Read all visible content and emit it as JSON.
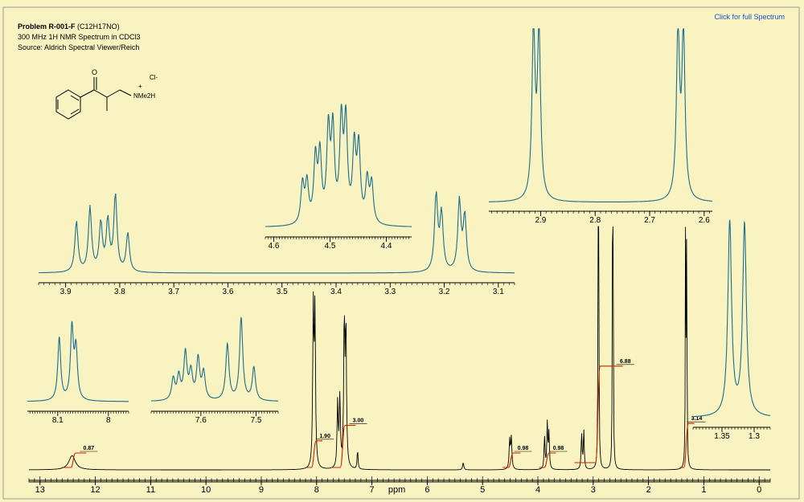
{
  "link_label": "Click for full Spectrum",
  "header": {
    "problem_prefix": "Problem R-001-F",
    "formula": "(C12H17NO)",
    "line2": "300 MHz 1H NMR Spectrum in CDCl3",
    "line3": "Source: Aldrich Spectral Viewer/Reich"
  },
  "structure_labels": {
    "o": "O",
    "cl": "Cl-",
    "plus": "+",
    "nme2h": "NMe2H"
  },
  "colors": {
    "background": "#f8f3c0",
    "main_spectrum": "#000000",
    "inset_spectrum": "#1a6f8f",
    "integral": "#cc2200",
    "axis": "#000000",
    "link": "#1a4fd0"
  },
  "chart_data": [
    {
      "type": "line",
      "name": "main",
      "title": "",
      "xlabel": "ppm",
      "xlim": [
        13.2,
        -0.2
      ],
      "x_reversed": true,
      "ticks": [
        13,
        12,
        11,
        10,
        9,
        8,
        7,
        6,
        5,
        4,
        3,
        2,
        1,
        0
      ],
      "peaks": [
        {
          "ppm": 12.42,
          "height": 0.06,
          "width": 0.07
        },
        {
          "ppm": 8.06,
          "height": 0.66,
          "width": 0.012
        },
        {
          "ppm": 8.03,
          "height": 0.64,
          "width": 0.012
        },
        {
          "ppm": 7.62,
          "height": 0.27,
          "width": 0.012
        },
        {
          "ppm": 7.58,
          "height": 0.29,
          "width": 0.012
        },
        {
          "ppm": 7.5,
          "height": 0.61,
          "width": 0.012
        },
        {
          "ppm": 7.47,
          "height": 0.58,
          "width": 0.012
        },
        {
          "ppm": 7.26,
          "height": 0.08,
          "width": 0.01
        },
        {
          "ppm": 5.35,
          "height": 0.03,
          "width": 0.012
        },
        {
          "ppm": 4.51,
          "height": 0.12,
          "width": 0.012
        },
        {
          "ppm": 4.48,
          "height": 0.13,
          "width": 0.012
        },
        {
          "ppm": 3.88,
          "height": 0.14,
          "width": 0.01
        },
        {
          "ppm": 3.83,
          "height": 0.19,
          "width": 0.01
        },
        {
          "ppm": 3.8,
          "height": 0.15,
          "width": 0.01
        },
        {
          "ppm": 3.21,
          "height": 0.15,
          "width": 0.01
        },
        {
          "ppm": 3.17,
          "height": 0.16,
          "width": 0.01
        },
        {
          "ppm": 2.91,
          "height": 0.93,
          "width": 0.006
        },
        {
          "ppm": 2.9,
          "height": 0.92,
          "width": 0.006
        },
        {
          "ppm": 2.65,
          "height": 0.89,
          "width": 0.006
        },
        {
          "ppm": 2.64,
          "height": 0.88,
          "width": 0.006
        },
        {
          "ppm": 1.33,
          "height": 1.0,
          "width": 0.006
        },
        {
          "ppm": 1.31,
          "height": 0.99,
          "width": 0.006
        }
      ],
      "integrals": [
        {
          "label": "0.87",
          "from": 12.55,
          "to": 12.25
        },
        {
          "label": "1.90",
          "from": 8.12,
          "to": 7.98
        },
        {
          "label": "3.00",
          "from": 7.68,
          "to": 7.38
        },
        {
          "label": "0.98",
          "from": 4.58,
          "to": 4.4
        },
        {
          "label": "0.98",
          "from": 3.92,
          "to": 3.76
        },
        {
          "label": "6.88",
          "from": 3.28,
          "to": 2.55
        },
        {
          "label": "3.14",
          "from": 1.38,
          "to": 1.26
        }
      ]
    },
    {
      "type": "line",
      "name": "inset-3.9-3.1",
      "xlim": [
        3.95,
        3.07
      ],
      "ticks": [
        3.9,
        3.8,
        3.7,
        3.6,
        3.5,
        3.4,
        3.3,
        3.2,
        3.1
      ],
      "peaks": [
        {
          "ppm": 3.88,
          "height": 0.55
        },
        {
          "ppm": 3.855,
          "height": 0.7
        },
        {
          "ppm": 3.835,
          "height": 0.52
        },
        {
          "ppm": 3.822,
          "height": 0.54
        },
        {
          "ppm": 3.808,
          "height": 0.83
        },
        {
          "ppm": 3.785,
          "height": 0.42
        },
        {
          "ppm": 3.215,
          "height": 0.83
        },
        {
          "ppm": 3.205,
          "height": 0.62
        },
        {
          "ppm": 3.172,
          "height": 0.76
        },
        {
          "ppm": 3.162,
          "height": 0.6
        }
      ]
    },
    {
      "type": "line",
      "name": "inset-4.6-4.4",
      "xlim": [
        4.615,
        4.355
      ],
      "ticks": [
        4.6,
        4.5,
        4.4
      ],
      "peaks": [
        {
          "ppm": 4.549,
          "height": 0.3
        },
        {
          "ppm": 4.541,
          "height": 0.3
        },
        {
          "ppm": 4.526,
          "height": 0.48
        },
        {
          "ppm": 4.518,
          "height": 0.5
        },
        {
          "ppm": 4.503,
          "height": 0.68
        },
        {
          "ppm": 4.495,
          "height": 0.68
        },
        {
          "ppm": 4.48,
          "height": 0.74
        },
        {
          "ppm": 4.472,
          "height": 0.74
        },
        {
          "ppm": 4.457,
          "height": 0.56
        },
        {
          "ppm": 4.449,
          "height": 0.56
        },
        {
          "ppm": 4.434,
          "height": 0.32
        },
        {
          "ppm": 4.426,
          "height": 0.3
        }
      ]
    },
    {
      "type": "line",
      "name": "inset-2.9-2.6",
      "xlim": [
        2.995,
        2.585
      ],
      "ticks": [
        2.9,
        2.8,
        2.7,
        2.6
      ],
      "peaks": [
        {
          "ppm": 2.913,
          "height": 0.98
        },
        {
          "ppm": 2.903,
          "height": 0.96
        },
        {
          "ppm": 2.648,
          "height": 0.98
        },
        {
          "ppm": 2.638,
          "height": 0.96
        }
      ]
    },
    {
      "type": "line",
      "name": "inset-8.1-8.0",
      "xlim": [
        8.16,
        7.96
      ],
      "ticks": [
        8.1,
        8.0
      ],
      "peaks": [
        {
          "ppm": 8.097,
          "height": 0.78
        },
        {
          "ppm": 8.072,
          "height": 0.88
        },
        {
          "ppm": 8.064,
          "height": 0.62
        }
      ]
    },
    {
      "type": "line",
      "name": "inset-7.6-7.5",
      "xlim": [
        7.69,
        7.46
      ],
      "ticks": [
        7.6,
        7.5
      ],
      "peaks": [
        {
          "ppm": 7.65,
          "height": 0.22
        },
        {
          "ppm": 7.64,
          "height": 0.24
        },
        {
          "ppm": 7.628,
          "height": 0.48
        },
        {
          "ppm": 7.618,
          "height": 0.28
        },
        {
          "ppm": 7.605,
          "height": 0.42
        },
        {
          "ppm": 7.595,
          "height": 0.28
        },
        {
          "ppm": 7.552,
          "height": 0.58
        },
        {
          "ppm": 7.527,
          "height": 0.85
        },
        {
          "ppm": 7.504,
          "height": 0.34
        }
      ]
    },
    {
      "type": "line",
      "name": "inset-1.35-1.30",
      "xlim": [
        1.395,
        1.275
      ],
      "ticks": [
        1.35,
        1.3
      ],
      "peaks": [
        {
          "ppm": 1.338,
          "height": 0.97
        },
        {
          "ppm": 1.315,
          "height": 0.96
        }
      ]
    }
  ]
}
